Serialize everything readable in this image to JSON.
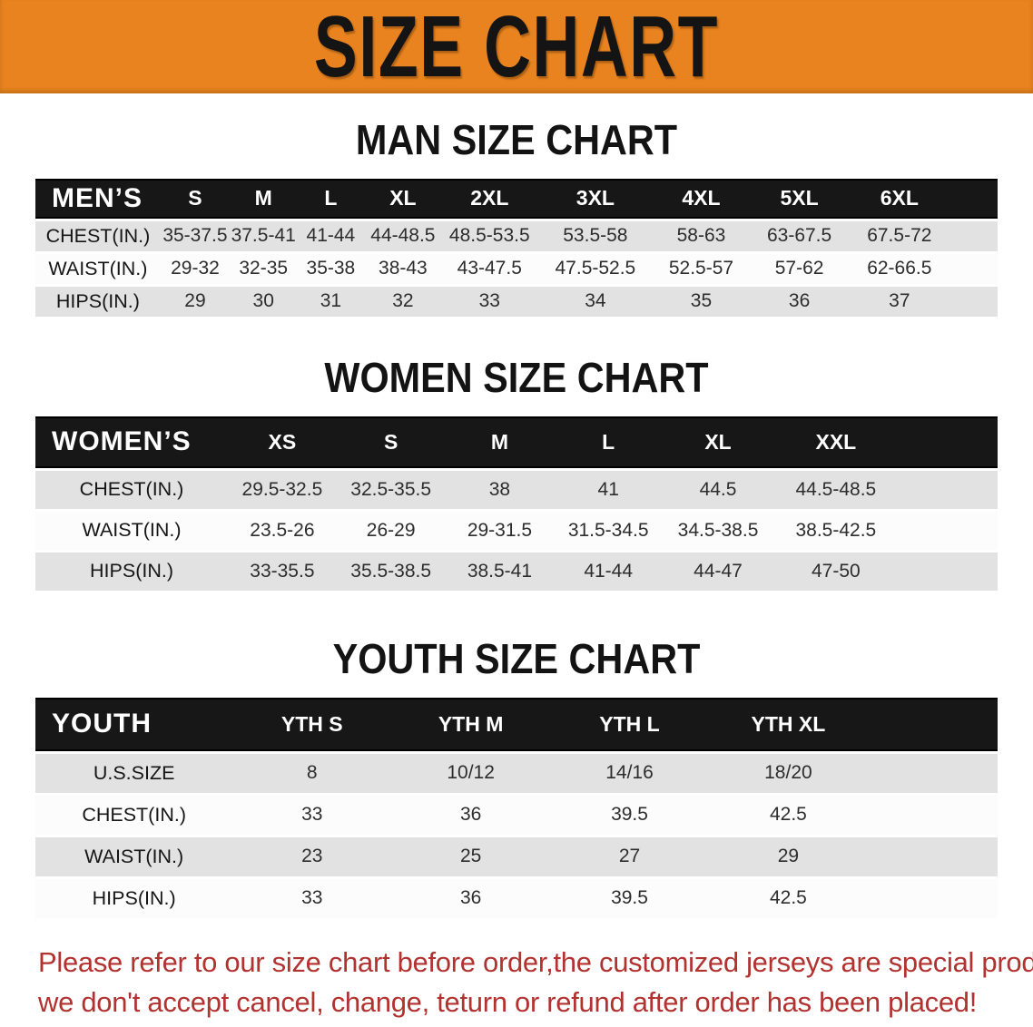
{
  "banner": {
    "title": "SIZE CHART"
  },
  "sections": [
    {
      "heading": "MAN SIZE CHART",
      "header_label": "MEN’S",
      "columns": [
        "S",
        "M",
        "L",
        "XL",
        "2XL",
        "3XL",
        "4XL",
        "5XL",
        "6XL"
      ],
      "rows": [
        {
          "label": "CHEST(IN.)",
          "values": [
            "35-37.5",
            "37.5-41",
            "41-44",
            "44-48.5",
            "48.5-53.5",
            "53.5-58",
            "58-63",
            "63-67.5",
            "67.5-72"
          ]
        },
        {
          "label": "WAIST(IN.)",
          "values": [
            "29-32",
            "32-35",
            "35-38",
            "38-43",
            "43-47.5",
            "47.5-52.5",
            "52.5-57",
            "57-62",
            "62-66.5"
          ]
        },
        {
          "label": "HIPS(IN.)",
          "values": [
            "29",
            "30",
            "31",
            "32",
            "33",
            "34",
            "35",
            "36",
            "37"
          ]
        }
      ]
    },
    {
      "heading": "WOMEN SIZE CHART",
      "header_label": "WOMEN’S",
      "columns": [
        "XS",
        "S",
        "M",
        "L",
        "XL",
        "XXL"
      ],
      "rows": [
        {
          "label": "CHEST(IN.)",
          "values": [
            "29.5-32.5",
            "32.5-35.5",
            "38",
            "41",
            "44.5",
            "44.5-48.5"
          ]
        },
        {
          "label": "WAIST(IN.)",
          "values": [
            "23.5-26",
            "26-29",
            "29-31.5",
            "31.5-34.5",
            "34.5-38.5",
            "38.5-42.5"
          ]
        },
        {
          "label": "HIPS(IN.)",
          "values": [
            "33-35.5",
            "35.5-38.5",
            "38.5-41",
            "41-44",
            "44-47",
            "47-50"
          ]
        }
      ]
    },
    {
      "heading": "YOUTH SIZE CHART",
      "header_label": "YOUTH",
      "columns": [
        "YTH S",
        "YTH M",
        "YTH L",
        "YTH XL"
      ],
      "rows": [
        {
          "label": "U.S.SIZE",
          "values": [
            "8",
            "10/12",
            "14/16",
            "18/20"
          ]
        },
        {
          "label": "CHEST(IN.)",
          "values": [
            "33",
            "36",
            "39.5",
            "42.5"
          ]
        },
        {
          "label": "WAIST(IN.)",
          "values": [
            "23",
            "25",
            "27",
            "29"
          ]
        },
        {
          "label": "HIPS(IN.)",
          "values": [
            "33",
            "36",
            "39.5",
            "42.5"
          ]
        }
      ]
    }
  ],
  "notice": {
    "line1": "Please refer to our size chart before order,the customized jerseys are special products,",
    "line2": "we don't accept cancel, change, teturn or refund after order has been placed!"
  },
  "colors": {
    "banner_orange": "#E8831F",
    "header_band_black": "#171717",
    "row_stripe_gray": "#E2E2E3",
    "notice_red": "#B23230"
  }
}
